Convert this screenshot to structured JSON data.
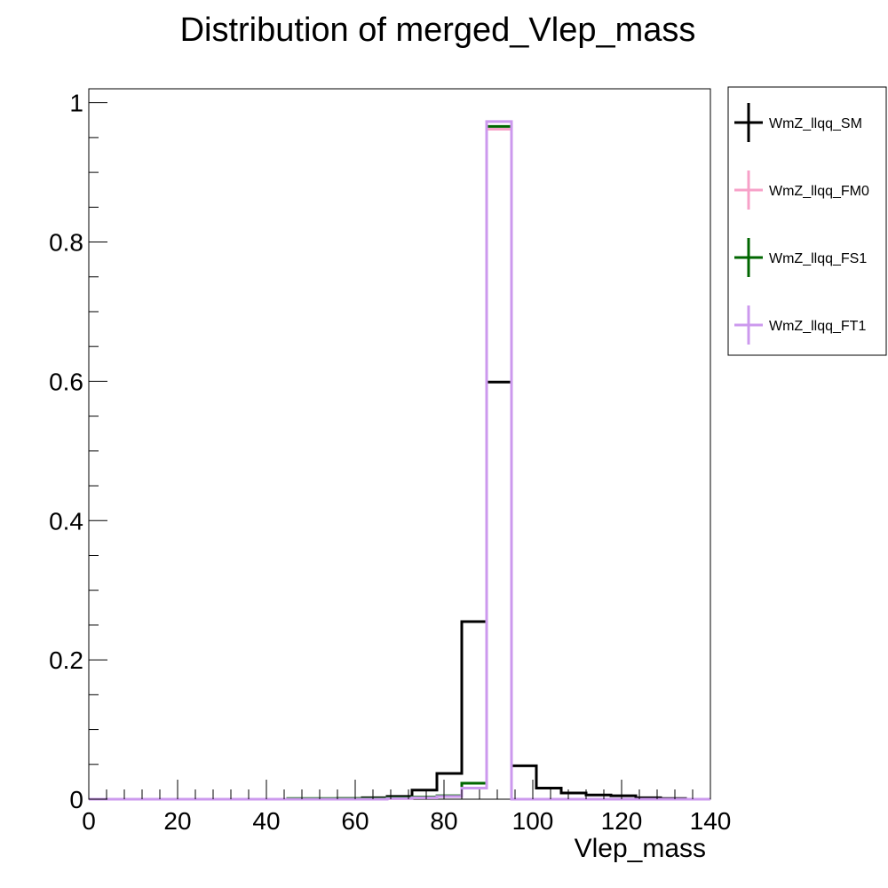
{
  "chart_data": {
    "type": "histogram",
    "title": "Distribution of merged_Vlep_mass",
    "xlabel": "Vlep_mass",
    "ylabel": "",
    "xlim": [
      0,
      140
    ],
    "ylim": [
      0,
      1.02
    ],
    "x_ticks": [
      0,
      20,
      40,
      60,
      80,
      100,
      120,
      140
    ],
    "y_ticks": [
      0,
      0.2,
      0.4,
      0.6,
      0.8,
      1
    ],
    "y_tick_labels": [
      "0",
      "0.2",
      "0.4",
      "0.6",
      "0.8",
      "1"
    ],
    "grid": false,
    "legend_position": "right",
    "bin_edges": [
      0,
      5.6,
      11.2,
      16.8,
      22.4,
      28,
      33.6,
      39.2,
      44.8,
      50.4,
      56,
      61.6,
      67.2,
      72.8,
      78.4,
      84,
      89.6,
      95.2,
      100.8,
      106.4,
      112,
      117.6,
      123.2,
      128.8,
      134.4,
      140
    ],
    "series": [
      {
        "name": "WmZ_llqq_SM",
        "color": "#000000",
        "values": [
          0,
          0,
          0,
          0,
          0,
          0,
          0,
          0,
          0,
          0,
          0.001,
          0.002,
          0.004,
          0.013,
          0.037,
          0.255,
          0.599,
          0.048,
          0.016,
          0.009,
          0.006,
          0.005,
          0.002,
          0.001,
          0
        ]
      },
      {
        "name": "WmZ_llqq_FM0",
        "color": "#f7a1c8",
        "values": [
          0,
          0,
          0,
          0,
          0,
          0,
          0,
          0,
          0,
          0,
          0,
          0,
          0.001,
          0.002,
          0.004,
          0.016,
          0.962,
          0,
          0,
          0,
          0,
          0,
          0,
          0,
          0
        ]
      },
      {
        "name": "WmZ_llqq_FS1",
        "color": "#006600",
        "values": [
          0,
          0,
          0,
          0,
          0,
          0,
          0,
          0,
          0.001,
          0.001,
          0.001,
          0.001,
          0.002,
          0.003,
          0.005,
          0.023,
          0.966,
          0,
          0,
          0,
          0,
          0,
          0,
          0,
          0
        ]
      },
      {
        "name": "WmZ_llqq_FT1",
        "color": "#cc99ee",
        "values": [
          0,
          0,
          0,
          0,
          0,
          0,
          0,
          0,
          0,
          0,
          0,
          0,
          0.001,
          0.002,
          0.004,
          0.016,
          0.973,
          0,
          0,
          0,
          0,
          0,
          0,
          0,
          0
        ]
      }
    ]
  }
}
